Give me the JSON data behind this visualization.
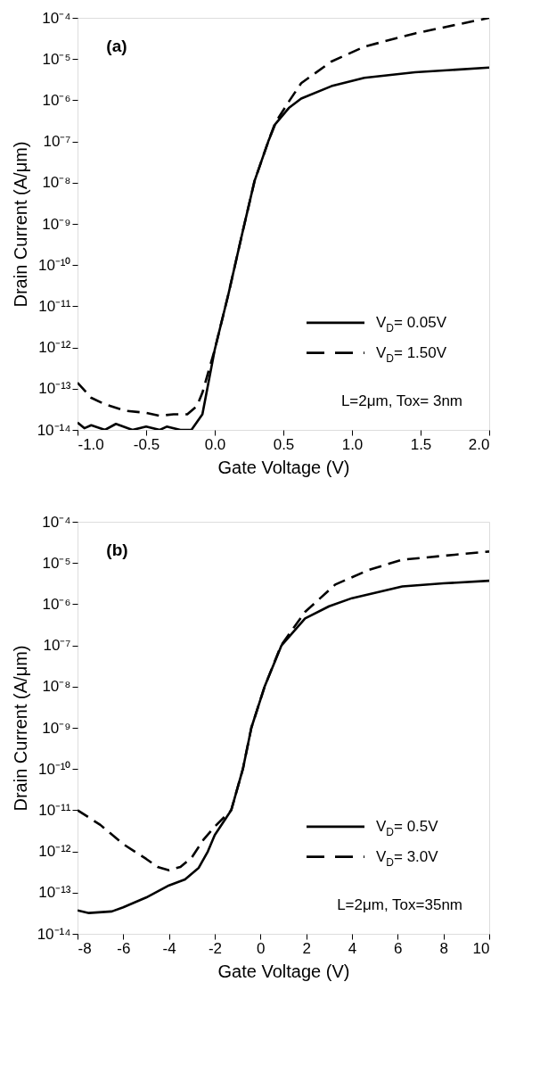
{
  "chart_data": [
    {
      "type": "line",
      "title": "(a)",
      "xlabel": "Gate Voltage (V)",
      "ylabel": "Drain Current (A/μm)",
      "log": "y",
      "grid": false,
      "legend": "bottom right",
      "xlim": [
        -1,
        2
      ],
      "xticks": [
        {
          "value": -1,
          "label": "-1.0"
        },
        {
          "value": -0.5,
          "label": "-0.5"
        },
        {
          "value": 0,
          "label": "0.0"
        },
        {
          "value": 0.5,
          "label": "0.5"
        },
        {
          "value": 1,
          "label": "1.0"
        },
        {
          "value": 1.5,
          "label": "1.5"
        },
        {
          "value": 2,
          "label": "2.0"
        }
      ],
      "ylim": [
        1e-14,
        0.0001
      ],
      "yticks": [
        {
          "value": 1e-14,
          "label": "10⁻¹⁴"
        },
        {
          "value": 1e-13,
          "label": "10⁻¹³"
        },
        {
          "value": 1e-12,
          "label": "10⁻¹²"
        },
        {
          "value": 1e-11,
          "label": "10⁻¹¹"
        },
        {
          "value": 1e-10,
          "label": "10⁻¹⁰"
        },
        {
          "value": 1e-09,
          "label": "10⁻⁹"
        },
        {
          "value": 1e-08,
          "label": "10⁻⁸"
        },
        {
          "value": 1e-07,
          "label": "10⁻⁷"
        },
        {
          "value": 1e-06,
          "label": "10⁻⁶"
        },
        {
          "value": 1e-05,
          "label": "10⁻⁵"
        },
        {
          "value": 0.0001,
          "label": "10⁻⁴"
        }
      ],
      "annotations": [
        "L=2μm, Tox= 3nm"
      ],
      "series": [
        {
          "name": "V$_{D}$= 0.05V",
          "color": "#000000",
          "line_style": "solid",
          "x": [
            -1,
            -0.95,
            -0.9,
            -0.8,
            -0.72,
            -0.6,
            -0.5,
            -0.4,
            -0.35,
            -0.25,
            -0.17,
            -0.09,
            0.0,
            0.1,
            0.2,
            0.29,
            0.39,
            0.44,
            0.54,
            0.63,
            0.85,
            1.09,
            1.46,
            2.0
          ],
          "values": [
            1.5e-14,
            1.1e-14,
            1.3e-14,
            1e-14,
            1.4e-14,
            1e-14,
            1.2e-14,
            1e-14,
            1.2e-14,
            1e-14,
            1e-14,
            2.4e-14,
            8.9e-13,
            2e-11,
            5.8e-10,
            1.1e-08,
            1e-07,
            2.6e-07,
            6.5e-07,
            1.1e-06,
            2.2e-06,
            3.5e-06,
            4.8e-06,
            6.2e-06
          ]
        },
        {
          "name": "V$_{D}$= 1.50V",
          "color": "#000000",
          "line_style": "dashed",
          "x": [
            -1,
            -0.9,
            -0.8,
            -0.65,
            -0.5,
            -0.4,
            -0.3,
            -0.2,
            -0.13,
            -0.09,
            0.0,
            0.1,
            0.2,
            0.29,
            0.39,
            0.44,
            0.54,
            0.63,
            0.85,
            1.09,
            1.46,
            2.0
          ],
          "values": [
            1.4e-13,
            6e-14,
            4.2e-14,
            2.9e-14,
            2.6e-14,
            2.2e-14,
            2.4e-14,
            2.4e-14,
            3.8e-14,
            8e-14,
            8.9e-13,
            2e-11,
            5.8e-10,
            1.1e-08,
            1e-07,
            2.8e-07,
            9.3e-07,
            2.6e-06,
            8.7e-06,
            2e-05,
            4.2e-05,
            0.0001
          ]
        }
      ]
    },
    {
      "type": "line",
      "title": "(b)",
      "xlabel": "Gate Voltage (V)",
      "ylabel": "Drain Current (A/μm)",
      "log": "y",
      "grid": false,
      "legend": "bottom right",
      "xlim": [
        -8,
        10
      ],
      "xticks": [
        -8,
        -6,
        -4,
        -2,
        0,
        2,
        4,
        6,
        8,
        10
      ],
      "ylim": [
        1e-14,
        0.0001
      ],
      "yticks": [
        {
          "value": 1e-14,
          "label": "10⁻¹⁴"
        },
        {
          "value": 1e-13,
          "label": "10⁻¹³"
        },
        {
          "value": 1e-12,
          "label": "10⁻¹²"
        },
        {
          "value": 1e-11,
          "label": "10⁻¹¹"
        },
        {
          "value": 1e-10,
          "label": "10⁻¹⁰"
        },
        {
          "value": 1e-09,
          "label": "10⁻⁹"
        },
        {
          "value": 1e-08,
          "label": "10⁻⁸"
        },
        {
          "value": 1e-07,
          "label": "10⁻⁷"
        },
        {
          "value": 1e-06,
          "label": "10⁻⁶"
        },
        {
          "value": 1e-05,
          "label": "10⁻⁵"
        },
        {
          "value": 0.0001,
          "label": "10⁻⁴"
        }
      ],
      "annotations": [
        "L=2μm, Tox=35nm"
      ],
      "series": [
        {
          "name": "V$_{D}$= 0.5V",
          "color": "#000000",
          "line_style": "solid",
          "x": [
            -8,
            -7.5,
            -6.5,
            -6,
            -5,
            -4,
            -3.3,
            -2.7,
            -2.3,
            -2.0,
            -1.28,
            -0.77,
            -0.4,
            0.18,
            0.92,
            1.95,
            3,
            4,
            6.2,
            8,
            10
          ],
          "values": [
            3.7e-14,
            3.2e-14,
            3.5e-14,
            4.4e-14,
            7.6e-14,
            1.5e-13,
            2.1e-13,
            4e-13,
            1e-12,
            2.5e-12,
            1e-11,
            1e-10,
            1e-09,
            1e-08,
            1e-07,
            4.5e-07,
            8.9e-07,
            1.4e-06,
            2.7e-06,
            3.2e-06,
            3.7e-06
          ]
        },
        {
          "name": "V$_{D}$= 3.0V",
          "color": "#000000",
          "line_style": "dashed",
          "x": [
            -8,
            -7,
            -6,
            -5,
            -4.5,
            -4,
            -3.5,
            -3,
            -2.5,
            -2,
            -1.28,
            -0.77,
            -0.4,
            0.18,
            0.9,
            1.95,
            3.27,
            4.74,
            6.2,
            10
          ],
          "values": [
            1e-11,
            4.4e-12,
            1.5e-12,
            6.6e-13,
            4.2e-13,
            3.5e-13,
            4.2e-13,
            7.2e-13,
            1.9e-12,
            4e-12,
            1e-11,
            1e-10,
            1e-09,
            1e-08,
            1e-07,
            6.5e-07,
            3e-06,
            6.8e-06,
            1.2e-05,
            1.9e-05
          ]
        }
      ]
    }
  ]
}
